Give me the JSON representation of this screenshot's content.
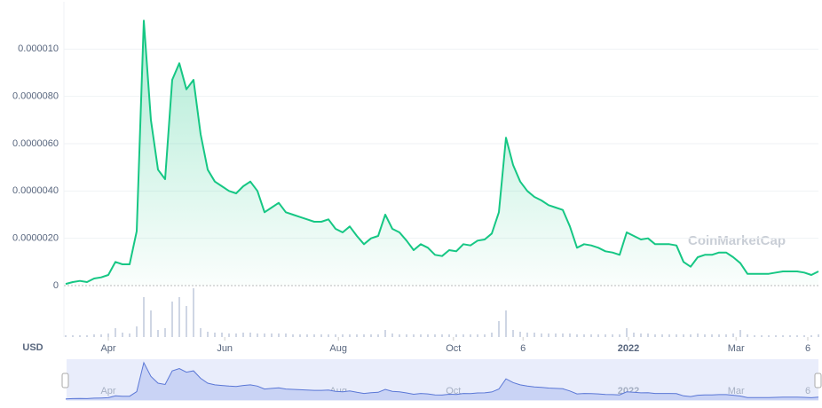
{
  "chart_data": {
    "type": "line",
    "currency": "USD",
    "watermark": "CoinMarketCap",
    "color": "#16c784",
    "grid": true,
    "xlim": [
      0,
      106
    ],
    "xticks": [
      {
        "value": 6,
        "label": "Apr"
      },
      {
        "value": 22.4,
        "label": "Jun"
      },
      {
        "value": 38.4,
        "label": "Aug"
      },
      {
        "value": 54.6,
        "label": "Oct"
      },
      {
        "value": 64.4,
        "label": "6"
      },
      {
        "value": 79.25,
        "label": "2022"
      },
      {
        "value": 94.4,
        "label": "Mar"
      },
      {
        "value": 104.5,
        "label": "6"
      }
    ],
    "ylim": [
      0,
      1.2e-05
    ],
    "yticks": [
      0,
      {
        "value": 2e-06,
        "label": "0.0000020"
      },
      {
        "value": 4e-06,
        "label": "0.0000040"
      },
      {
        "value": 6e-06,
        "label": "0.0000060"
      },
      {
        "value": 8e-06,
        "label": "0.0000080"
      },
      {
        "value": 1e-05,
        "label": "0.000010"
      }
    ],
    "values": [
      7e-08,
      1.5e-07,
      2e-07,
      1.5e-07,
      3e-07,
      3.5e-07,
      4.5e-07,
      1e-06,
      9e-07,
      9e-07,
      2.3e-06,
      1.12e-05,
      7e-06,
      4.9e-06,
      4.5e-06,
      8.7e-06,
      9.4e-06,
      8.3e-06,
      8.7e-06,
      6.4e-06,
      4.9e-06,
      4.4e-06,
      4.2e-06,
      4e-06,
      3.9e-06,
      4.2e-06,
      4.4e-06,
      4e-06,
      3.1e-06,
      3.3e-06,
      3.5e-06,
      3.1e-06,
      3e-06,
      2.9e-06,
      2.8e-06,
      2.7e-06,
      2.7e-06,
      2.8e-06,
      2.4e-06,
      2.25e-06,
      2.5e-06,
      2.1e-06,
      1.75e-06,
      2e-06,
      2.1e-06,
      3e-06,
      2.4e-06,
      2.25e-06,
      1.9e-06,
      1.5e-06,
      1.75e-06,
      1.6e-06,
      1.3e-06,
      1.25e-06,
      1.5e-06,
      1.45e-06,
      1.75e-06,
      1.7e-06,
      1.9e-06,
      1.95e-06,
      2.2e-06,
      3.1e-06,
      6.25e-06,
      5.1e-06,
      4.4e-06,
      4e-06,
      3.75e-06,
      3.6e-06,
      3.4e-06,
      3.3e-06,
      3.2e-06,
      2.5e-06,
      1.6e-06,
      1.75e-06,
      1.7e-06,
      1.6e-06,
      1.45e-06,
      1.4e-06,
      1.3e-06,
      2.25e-06,
      2.1e-06,
      1.95e-06,
      2e-06,
      1.75e-06,
      1.75e-06,
      1.75e-06,
      1.7e-06,
      1e-06,
      8e-07,
      1.2e-06,
      1.3e-06,
      1.3e-06,
      1.4e-06,
      1.4e-06,
      1.2e-06,
      9.5e-07,
      5e-07,
      5e-07,
      5e-07,
      5e-07,
      5.5e-07,
      6e-07,
      6e-07,
      6e-07,
      5.5e-07,
      4.5e-07,
      6e-07
    ],
    "volume": [
      2,
      2,
      2,
      2,
      3,
      3,
      4,
      10,
      5,
      4,
      12,
      45,
      30,
      8,
      10,
      40,
      45,
      35,
      55,
      10,
      6,
      5,
      5,
      4,
      4,
      5,
      5,
      4,
      4,
      4,
      4,
      4,
      3,
      3,
      3,
      3,
      3,
      3,
      3,
      3,
      3,
      3,
      3,
      3,
      3,
      8,
      4,
      3,
      3,
      3,
      3,
      3,
      3,
      3,
      3,
      3,
      3,
      3,
      3,
      3,
      5,
      18,
      30,
      8,
      6,
      5,
      5,
      4,
      4,
      4,
      4,
      4,
      3,
      3,
      3,
      3,
      3,
      3,
      3,
      10,
      5,
      4,
      4,
      3,
      3,
      3,
      3,
      3,
      3,
      4,
      3,
      3,
      3,
      3,
      4,
      8,
      3,
      2,
      2,
      2,
      2,
      2,
      2,
      2,
      2,
      2,
      3
    ]
  }
}
